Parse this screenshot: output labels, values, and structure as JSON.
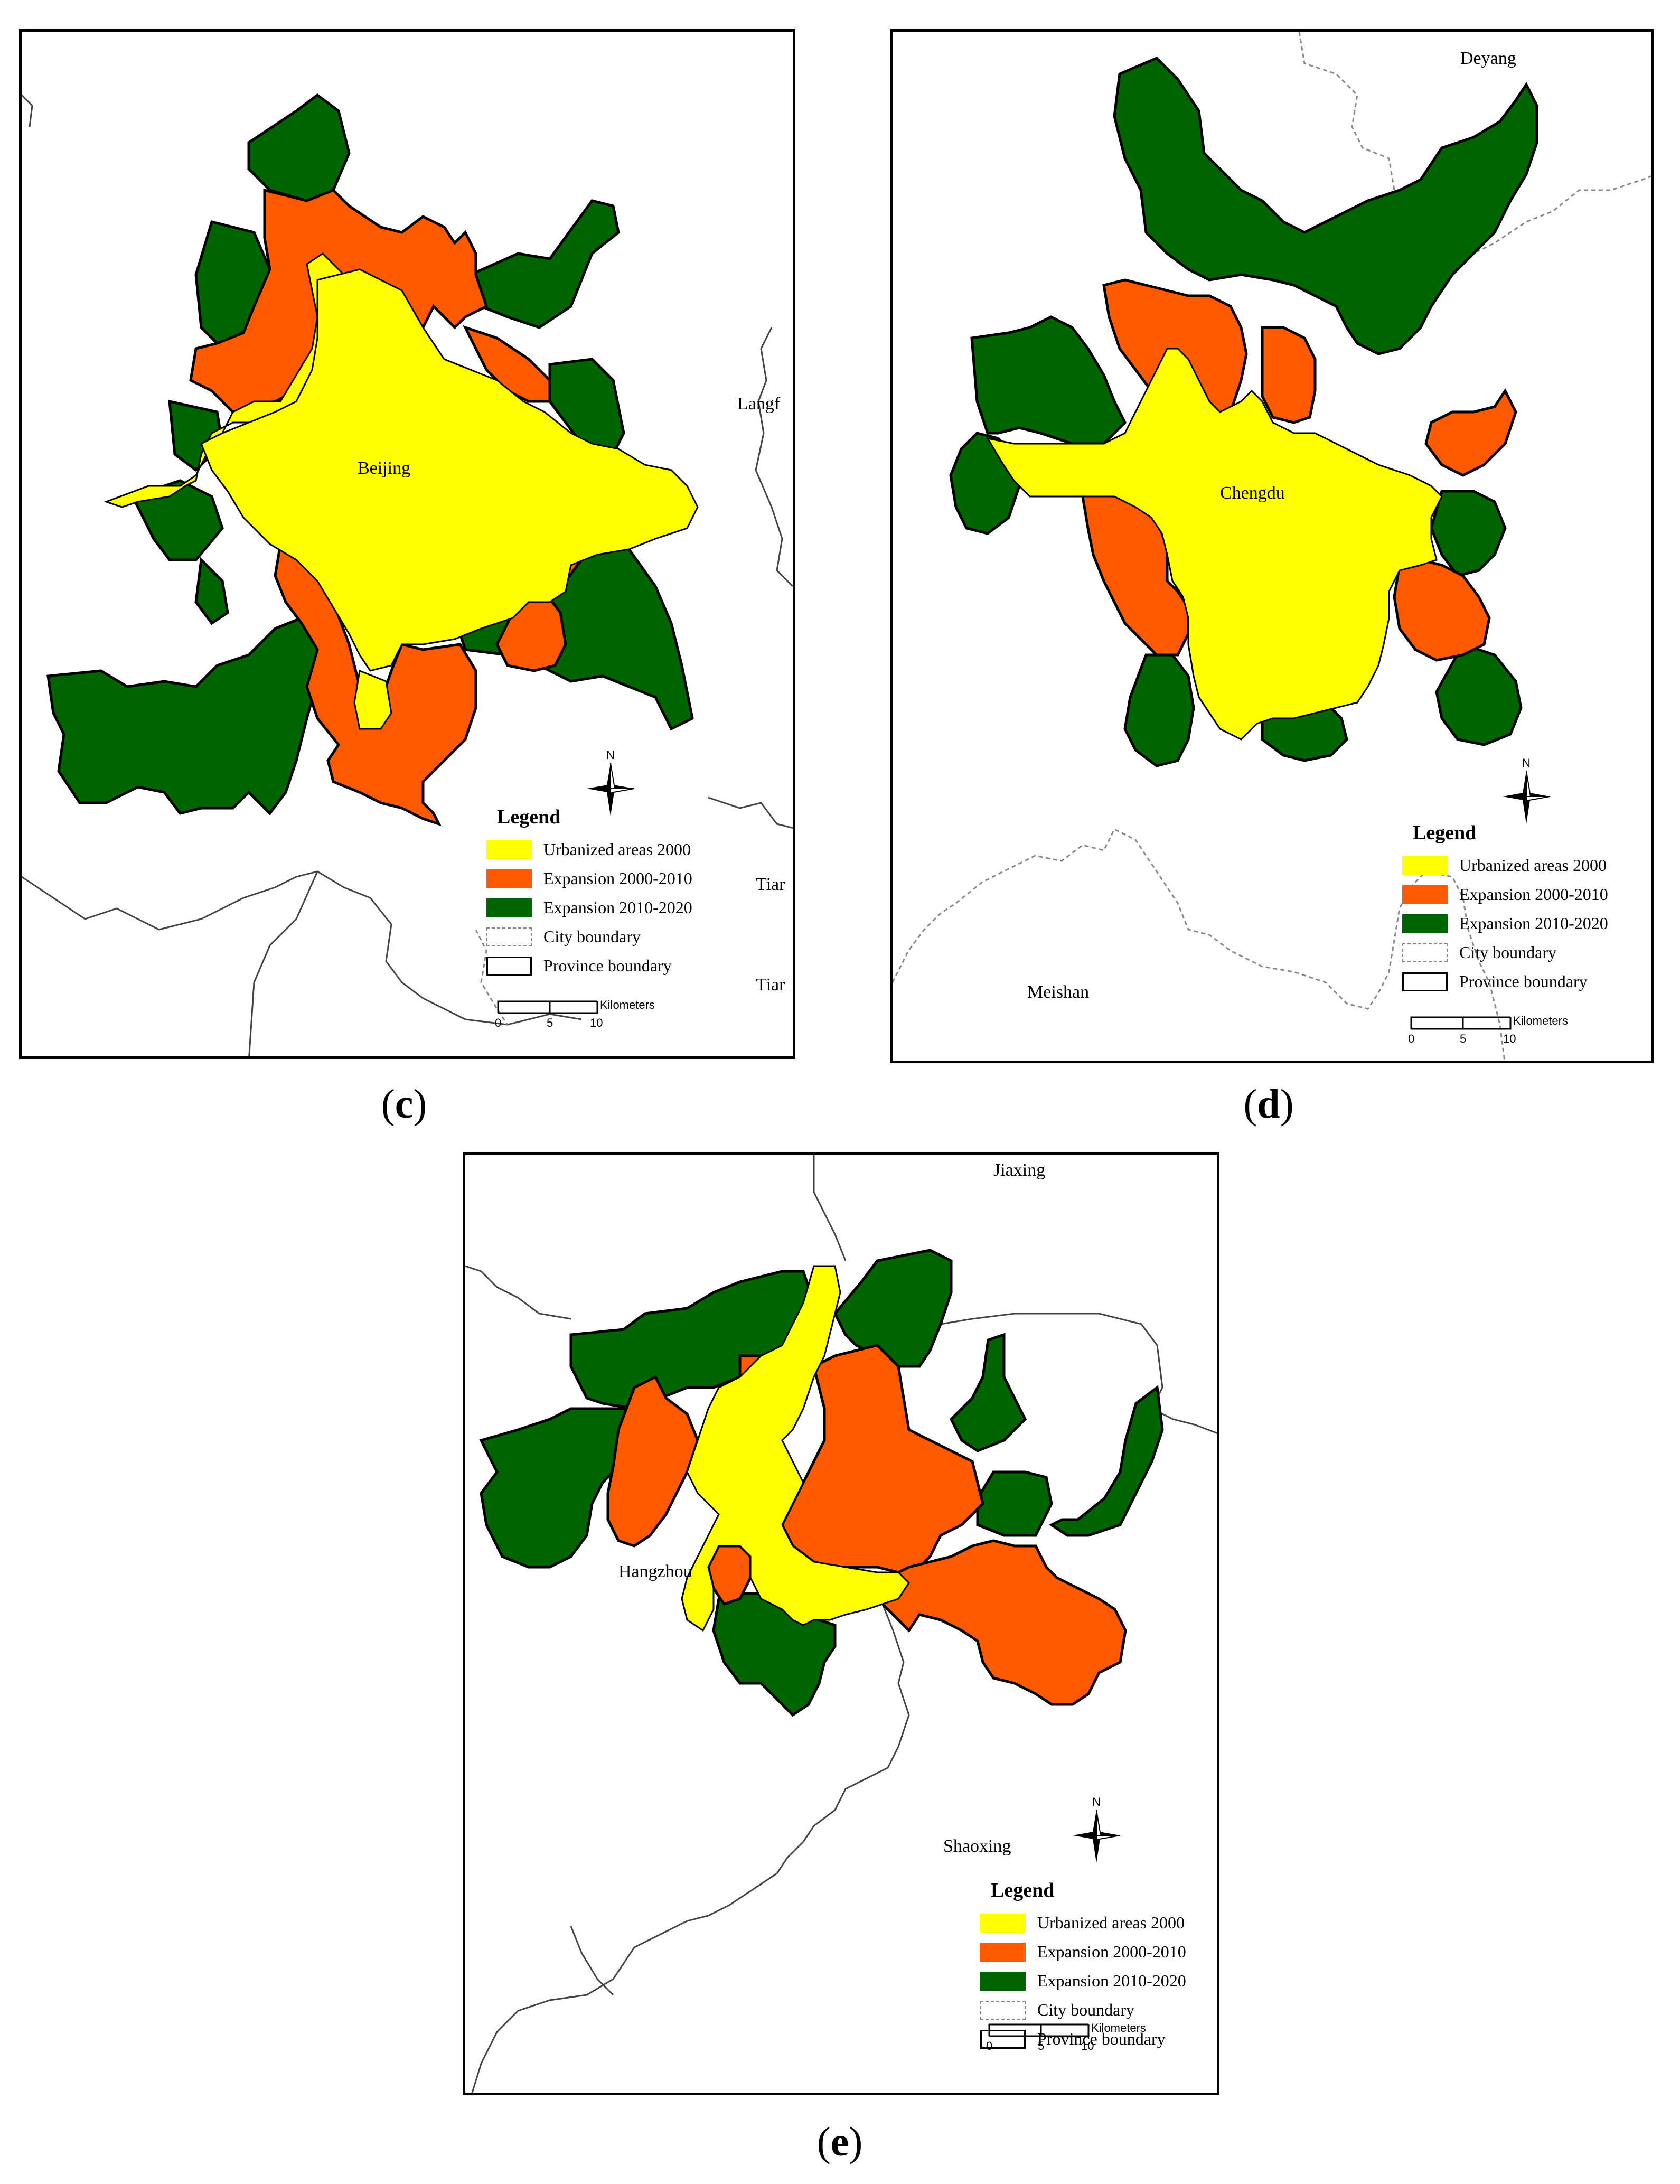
{
  "colors": {
    "urbanized_2000": "#ffff00",
    "expansion_2000_2010": "#ff5a00",
    "expansion_2010_2020": "#006400",
    "outline": "#000000",
    "city_boundary": "#888888",
    "province_boundary": "#000000"
  },
  "icons": {
    "north_arrow": "north-arrow-icon"
  },
  "panels": {
    "c": {
      "caption_letter": "c",
      "city": "Beijing",
      "neighbors": [
        "Langf",
        "Tiar",
        "Tiar"
      ],
      "legend": {
        "title": "Legend",
        "items": [
          "Urbanized areas 2000",
          "Expansion 2000-2010",
          "Expansion 2010-2020",
          "City boundary",
          "Province boundary"
        ]
      },
      "scale": {
        "unit": "Kilometers",
        "ticks": [
          "0",
          "5",
          "10"
        ]
      },
      "north_label": "N"
    },
    "d": {
      "caption_letter": "d",
      "city": "Chengdu",
      "neighbors": [
        "Deyang",
        "Meishan"
      ],
      "legend": {
        "title": "Legend",
        "items": [
          "Urbanized areas 2000",
          "Expansion 2000-2010",
          "Expansion 2010-2020",
          "City boundary",
          "Province boundary"
        ]
      },
      "scale": {
        "unit": "Kilometers",
        "ticks": [
          "0",
          "5",
          "10"
        ]
      },
      "north_label": "N"
    },
    "e": {
      "caption_letter": "e",
      "city": "Hangzhou",
      "neighbors": [
        "Jiaxing",
        "Shaoxing"
      ],
      "legend": {
        "title": "Legend",
        "items": [
          "Urbanized areas 2000",
          "Expansion 2000-2010",
          "Expansion 2010-2020",
          "City boundary",
          "Province boundary"
        ]
      },
      "scale": {
        "unit": "Kilometers",
        "ticks": [
          "0",
          "5",
          "10"
        ]
      },
      "north_label": "N"
    }
  }
}
